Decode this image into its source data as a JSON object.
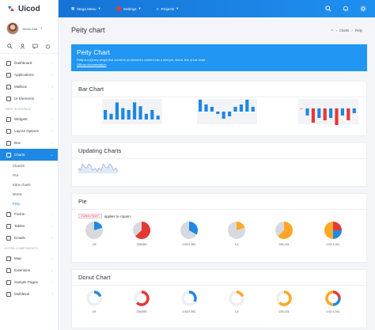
{
  "app": {
    "name": "Uicod"
  },
  "user": {
    "name": "Johnn Dee"
  },
  "sidebar": {
    "items_top": [
      {
        "label": "Dashboard"
      },
      {
        "label": "Applications"
      },
      {
        "label": "Mailbox"
      },
      {
        "label": "UI Elements"
      }
    ],
    "section_ui": "USER INTERFACE",
    "items_ui": [
      {
        "label": "Widgets"
      },
      {
        "label": "Layout Options"
      },
      {
        "label": "Box"
      },
      {
        "label": "Charts"
      }
    ],
    "chart_subitems": [
      {
        "label": "ChartJS"
      },
      {
        "label": "Flot"
      },
      {
        "label": "Inline charts"
      },
      {
        "label": "Morris"
      },
      {
        "label": "Peity"
      }
    ],
    "items_more": [
      {
        "label": "Forms"
      },
      {
        "label": "Tables"
      },
      {
        "label": "Emails"
      }
    ],
    "section_extra": "EXTRA COMPONENTS",
    "items_extra": [
      {
        "label": "Map"
      },
      {
        "label": "Extension"
      },
      {
        "label": "Sample Pages"
      },
      {
        "label": "Multilevel"
      }
    ]
  },
  "topbar": {
    "menu1": "Mega Menu",
    "menu2": "Settings",
    "menu3": "Projects"
  },
  "page": {
    "title": "Peity chart",
    "breadcrumb_1": "Charts",
    "breadcrumb_2": "Peity"
  },
  "banner": {
    "title": "Peity Chart",
    "description": "Peity is a jQuery plugin that converts an element's content into a mini pie, donut, line or bar chart.",
    "link": "Official documentation"
  },
  "cards": {
    "bar": "Bar Chart",
    "updating": "Updating Charts",
    "pie": "Pie",
    "donut": "Donut Chart"
  },
  "pie_section": {
    "code": "class=\"pie\"",
    "text": "applies to <span>"
  },
  "colors": {
    "primary": "#1e88e5",
    "danger": "#e53935",
    "warning": "#ffa726",
    "grey": "#d7d9de"
  },
  "chart_data": [
    {
      "type": "bar",
      "name": "bar-1",
      "values": [
        5,
        3,
        9,
        6,
        5,
        9,
        7,
        3,
        5,
        2
      ]
    },
    {
      "type": "bar",
      "name": "bar-2",
      "values": [
        5,
        3,
        2,
        -1,
        -3,
        -2,
        2,
        3,
        5,
        2
      ]
    },
    {
      "type": "bar",
      "name": "bar-3",
      "values": [
        0,
        -3,
        -6,
        -4,
        -5,
        -4,
        -7,
        -3,
        -5,
        -2
      ]
    },
    {
      "type": "line",
      "name": "updating",
      "values": [
        5,
        3,
        9,
        6,
        5,
        9,
        7,
        3,
        5,
        2,
        5,
        3,
        9,
        6,
        5,
        9,
        7,
        3,
        5,
        2
      ]
    },
    {
      "type": "pie",
      "name": "pies",
      "items": [
        {
          "label": "1/5",
          "value": 1,
          "total": 5,
          "color": "#1e88e5"
        },
        {
          "label": "226/360",
          "value": 226,
          "total": 360,
          "color": "#e53935"
        },
        {
          "label": "0.52/1.561",
          "value": 0.52,
          "total": 1.561,
          "color": "#1e88e5"
        },
        {
          "label": "1,4",
          "value": 1,
          "total": 5,
          "color": "#ffa726"
        },
        {
          "label": "226,134",
          "value": 226,
          "total": 360,
          "color": "#ffa726"
        },
        {
          "label": "0.52,1.041",
          "value": 0.52,
          "total": 1.561,
          "color": "#e53935",
          "multi": [
            "#e53935",
            "#1e88e5",
            "#ffa726"
          ]
        }
      ]
    },
    {
      "type": "donut",
      "name": "donuts",
      "items": [
        {
          "label": "1/5",
          "value": 1,
          "total": 5,
          "color": "#1e88e5"
        },
        {
          "label": "226/360",
          "value": 226,
          "total": 360,
          "color": "#e53935"
        },
        {
          "label": "0.52/1.561",
          "value": 0.52,
          "total": 1.561,
          "color": "#1e88e5"
        },
        {
          "label": "1,4",
          "value": 1,
          "total": 5,
          "color": "#ffa726"
        },
        {
          "label": "226,134",
          "value": 226,
          "total": 360,
          "color": "#ffa726"
        },
        {
          "label": "0.52,1.041",
          "value": 0.52,
          "total": 1.561,
          "color": "#e53935",
          "multi": [
            "#e53935",
            "#1e88e5",
            "#ffa726"
          ]
        }
      ]
    }
  ]
}
